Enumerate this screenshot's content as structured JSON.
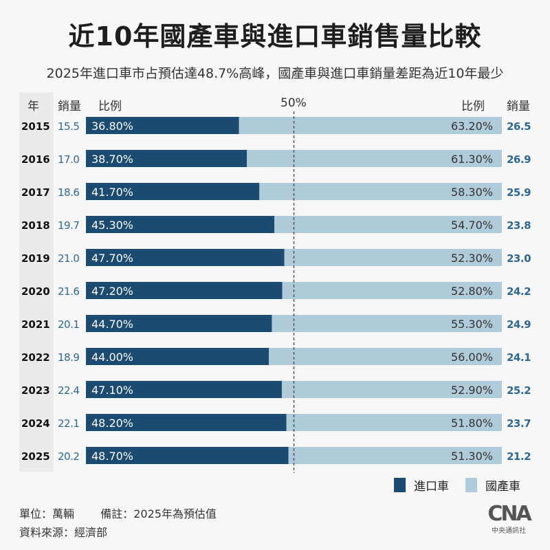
{
  "title": "近10年國產車與進口車銷售量比較",
  "subtitle": "2025年進口車市占預估達48.7%高峰，國產車與進口車銷量差距為近10年最少",
  "headers": {
    "year": "年",
    "sales_left": "銷量",
    "ratio_left": "比例",
    "midline": "50%",
    "ratio_right": "比例",
    "sales_right": "銷量"
  },
  "legend": {
    "imported": "進口車",
    "domestic": "國產車"
  },
  "notes": {
    "unit": "單位：萬輛",
    "remark": "備註：2025年為預估值",
    "source": "資料來源：經濟部"
  },
  "logo": {
    "mark": "CNA",
    "name": "中央通訊社"
  },
  "colors": {
    "imported": "#1b4b70",
    "domestic": "#b0cbd9",
    "sales_text": "#2b6894",
    "midline": "#555555"
  },
  "chart_data": {
    "type": "bar",
    "orientation": "horizontal-stacked-100",
    "categories": [
      "2015",
      "2016",
      "2017",
      "2018",
      "2019",
      "2020",
      "2021",
      "2022",
      "2023",
      "2024",
      "2025"
    ],
    "series": [
      {
        "name": "進口車",
        "ratio_labels": [
          "36.80%",
          "38.70%",
          "41.70%",
          "45.30%",
          "47.70%",
          "47.20%",
          "44.70%",
          "44.00%",
          "47.10%",
          "48.20%",
          "48.70%"
        ],
        "values": [
          36.8,
          38.7,
          41.7,
          45.3,
          47.7,
          47.2,
          44.7,
          44.0,
          47.1,
          48.2,
          48.7
        ],
        "sales": [
          "15.5",
          "17.0",
          "18.6",
          "19.7",
          "21.0",
          "21.6",
          "20.1",
          "18.9",
          "22.4",
          "22.1",
          "20.2"
        ]
      },
      {
        "name": "國產車",
        "ratio_labels": [
          "63.20%",
          "61.30%",
          "58.30%",
          "54.70%",
          "52.30%",
          "52.80%",
          "55.30%",
          "56.00%",
          "52.90%",
          "51.80%",
          "51.30%"
        ],
        "values": [
          63.2,
          61.3,
          58.3,
          54.7,
          52.3,
          52.8,
          55.3,
          56.0,
          52.9,
          51.8,
          51.3
        ],
        "sales": [
          "26.5",
          "26.9",
          "25.9",
          "23.8",
          "23.0",
          "24.2",
          "24.9",
          "24.1",
          "25.2",
          "23.7",
          "21.2"
        ]
      }
    ],
    "xlim": [
      0,
      100
    ],
    "reference_line": 50,
    "legend_position": "bottom-right"
  }
}
